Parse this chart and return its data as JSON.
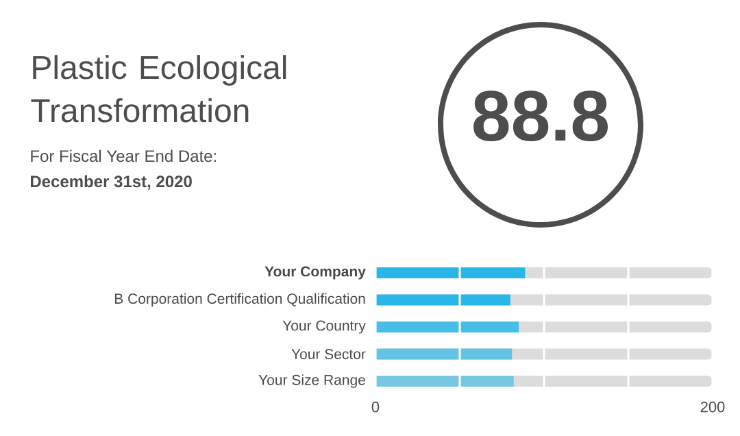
{
  "chart_data": {
    "type": "bar",
    "orientation": "horizontal",
    "title": "Plastic Ecological Transformation",
    "subtitle": "For Fiscal Year End Date:",
    "annotations": [
      "December 31st, 2020",
      "88.8"
    ],
    "categories": [
      "**Your Company**",
      "B Corporation Certification Qualification",
      "Your Country",
      "Your Sector",
      "Your Size Range"
    ],
    "values": [
      88.8,
      80,
      85,
      81,
      82
    ],
    "colors": [
      "#29b6e8",
      "#29b6e8",
      "#45bde6",
      "#62c3e5",
      "#76c7e3"
    ],
    "xlim": [
      0,
      200
    ],
    "xticks": [
      0,
      {
        "value": 50,
        "label": null
      },
      {
        "value": 100,
        "label": null
      },
      {
        "value": 150,
        "label": null
      },
      200
    ],
    "grid": "x"
  }
}
